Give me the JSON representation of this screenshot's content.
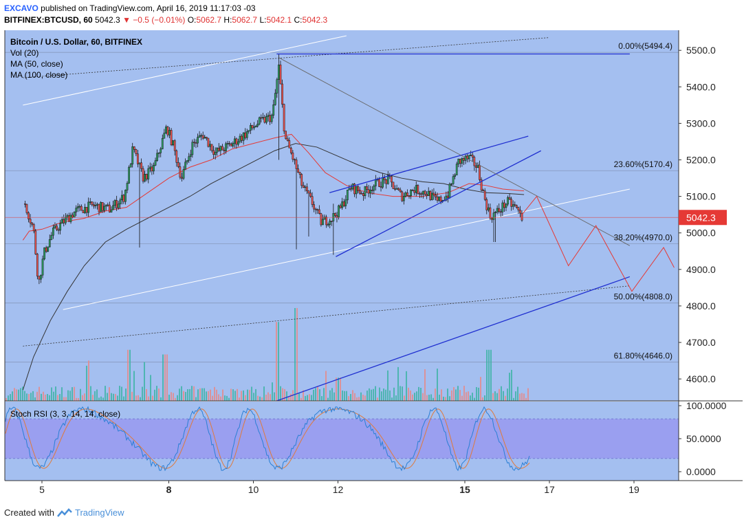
{
  "header": {
    "author": "EXCAVO",
    "published_text": "published on TradingView.com, April 16, 2019 11:17:03 -03",
    "symbol": "BITFINEX:BTCUSD, 60",
    "price": "5042.3",
    "change": "▼ −0.5 (−0.01%)",
    "ohlc": {
      "o_label": "O:",
      "o": "5062.7",
      "h_label": "H:",
      "h": "5062.7",
      "l_label": "L:",
      "l": "5042.1",
      "c_label": "C:",
      "c": "5042.3"
    }
  },
  "legend": {
    "title": "Bitcoin / U.S. Dollar, 60, BITFINEX",
    "items": [
      "Vol (20)",
      "MA (50, close)",
      "MA (100, close)"
    ]
  },
  "price_axis": {
    "ticks": [
      "5500.0",
      "5400.0",
      "5300.0",
      "5200.0",
      "5100.0",
      "5000.0",
      "4900.0",
      "4800.0",
      "4700.0",
      "4600.0"
    ],
    "current_price": "5042.3"
  },
  "fib_levels": [
    {
      "label": "0.00%(5494.4)",
      "value": 5494.4
    },
    {
      "label": "23.60%(5170.4)",
      "value": 5170.4
    },
    {
      "label": "38.20%(4970.0)",
      "value": 4970.0
    },
    {
      "label": "50.00%(4808.0)",
      "value": 4808.0
    },
    {
      "label": "61.80%(4646.0)",
      "value": 4646.0
    }
  ],
  "rsi": {
    "title": "Stoch RSI (3, 3, 14, 14, close)",
    "ticks": [
      "100.0000",
      "50.0000",
      "0.0000"
    ]
  },
  "time_axis": {
    "labels": [
      {
        "text": "5",
        "bold": false
      },
      {
        "text": "8",
        "bold": true
      },
      {
        "text": "10",
        "bold": false
      },
      {
        "text": "12",
        "bold": false
      },
      {
        "text": "15",
        "bold": true
      },
      {
        "text": "17",
        "bold": false
      },
      {
        "text": "19",
        "bold": false
      }
    ]
  },
  "footer": {
    "created_with": "Created with",
    "brand": "TradingView"
  },
  "colors": {
    "chart_bg": "#a4bff0",
    "rsi_band": "#9a9ff0",
    "up_candle": "#2e9e63",
    "down_candle": "#ef5350",
    "ma50": "#e53935",
    "ma100": "#333333",
    "trendline": "#1f2fd0",
    "price_tag": "#e53935"
  },
  "chart_data": {
    "type": "candlestick",
    "symbol": "BTCUSD",
    "interval": "60",
    "ylim": [
      4540,
      5555
    ],
    "x_dates": [
      "5",
      "8",
      "10",
      "12",
      "15",
      "17",
      "19"
    ],
    "close_path": [
      {
        "d": 4.6,
        "v": 5080
      },
      {
        "d": 4.8,
        "v": 5010
      },
      {
        "d": 4.92,
        "v": 4860
      },
      {
        "d": 5.05,
        "v": 4945
      },
      {
        "d": 5.25,
        "v": 5000
      },
      {
        "d": 5.5,
        "v": 5030
      },
      {
        "d": 5.8,
        "v": 5060
      },
      {
        "d": 6.2,
        "v": 5075
      },
      {
        "d": 6.6,
        "v": 5065
      },
      {
        "d": 6.95,
        "v": 5100
      },
      {
        "d": 7.15,
        "v": 5230
      },
      {
        "d": 7.4,
        "v": 5150
      },
      {
        "d": 7.65,
        "v": 5180
      },
      {
        "d": 7.95,
        "v": 5290
      },
      {
        "d": 8.1,
        "v": 5240
      },
      {
        "d": 8.3,
        "v": 5150
      },
      {
        "d": 8.55,
        "v": 5240
      },
      {
        "d": 8.8,
        "v": 5270
      },
      {
        "d": 9.1,
        "v": 5220
      },
      {
        "d": 9.45,
        "v": 5240
      },
      {
        "d": 9.8,
        "v": 5270
      },
      {
        "d": 10.1,
        "v": 5300
      },
      {
        "d": 10.45,
        "v": 5320
      },
      {
        "d": 10.6,
        "v": 5455
      },
      {
        "d": 10.75,
        "v": 5260
      },
      {
        "d": 10.95,
        "v": 5200
      },
      {
        "d": 11.15,
        "v": 5130
      },
      {
        "d": 11.4,
        "v": 5080
      },
      {
        "d": 11.6,
        "v": 5030
      },
      {
        "d": 11.85,
        "v": 5040
      },
      {
        "d": 12.05,
        "v": 5065
      },
      {
        "d": 12.3,
        "v": 5125
      },
      {
        "d": 12.6,
        "v": 5110
      },
      {
        "d": 12.9,
        "v": 5135
      },
      {
        "d": 13.2,
        "v": 5145
      },
      {
        "d": 13.5,
        "v": 5100
      },
      {
        "d": 13.8,
        "v": 5120
      },
      {
        "d": 14.1,
        "v": 5110
      },
      {
        "d": 14.35,
        "v": 5085
      },
      {
        "d": 14.6,
        "v": 5105
      },
      {
        "d": 14.85,
        "v": 5195
      },
      {
        "d": 15.1,
        "v": 5205
      },
      {
        "d": 15.3,
        "v": 5180
      },
      {
        "d": 15.45,
        "v": 5100
      },
      {
        "d": 15.6,
        "v": 5045
      },
      {
        "d": 15.8,
        "v": 5060
      },
      {
        "d": 16.0,
        "v": 5085
      },
      {
        "d": 16.2,
        "v": 5070
      },
      {
        "d": 16.35,
        "v": 5042.3
      }
    ],
    "ma50": [
      {
        "d": 4.55,
        "v": 4980
      },
      {
        "d": 4.7,
        "v": 5005
      },
      {
        "d": 5.0,
        "v": 5010
      },
      {
        "d": 5.5,
        "v": 5030
      },
      {
        "d": 6.0,
        "v": 5040
      },
      {
        "d": 6.5,
        "v": 5060
      },
      {
        "d": 7.0,
        "v": 5070
      },
      {
        "d": 7.5,
        "v": 5110
      },
      {
        "d": 8.0,
        "v": 5150
      },
      {
        "d": 8.5,
        "v": 5180
      },
      {
        "d": 9.0,
        "v": 5200
      },
      {
        "d": 9.5,
        "v": 5230
      },
      {
        "d": 10.0,
        "v": 5245
      },
      {
        "d": 10.5,
        "v": 5260
      },
      {
        "d": 10.9,
        "v": 5270
      },
      {
        "d": 11.3,
        "v": 5220
      },
      {
        "d": 11.7,
        "v": 5165
      },
      {
        "d": 12.2,
        "v": 5130
      },
      {
        "d": 12.7,
        "v": 5110
      },
      {
        "d": 13.3,
        "v": 5100
      },
      {
        "d": 14.0,
        "v": 5100
      },
      {
        "d": 14.6,
        "v": 5110
      },
      {
        "d": 15.1,
        "v": 5135
      },
      {
        "d": 15.5,
        "v": 5130
      },
      {
        "d": 15.9,
        "v": 5120
      },
      {
        "d": 16.4,
        "v": 5115
      }
    ],
    "ma100": [
      {
        "d": 4.55,
        "v": 4570
      },
      {
        "d": 4.8,
        "v": 4660
      },
      {
        "d": 5.2,
        "v": 4760
      },
      {
        "d": 5.6,
        "v": 4840
      },
      {
        "d": 6.0,
        "v": 4910
      },
      {
        "d": 6.5,
        "v": 4975
      },
      {
        "d": 7.0,
        "v": 5010
      },
      {
        "d": 7.5,
        "v": 5040
      },
      {
        "d": 8.0,
        "v": 5070
      },
      {
        "d": 8.5,
        "v": 5100
      },
      {
        "d": 9.0,
        "v": 5135
      },
      {
        "d": 9.5,
        "v": 5165
      },
      {
        "d": 10.0,
        "v": 5195
      },
      {
        "d": 10.5,
        "v": 5225
      },
      {
        "d": 11.0,
        "v": 5245
      },
      {
        "d": 11.5,
        "v": 5235
      },
      {
        "d": 12.0,
        "v": 5210
      },
      {
        "d": 12.5,
        "v": 5185
      },
      {
        "d": 13.0,
        "v": 5165
      },
      {
        "d": 13.5,
        "v": 5150
      },
      {
        "d": 14.0,
        "v": 5140
      },
      {
        "d": 14.5,
        "v": 5135
      },
      {
        "d": 15.0,
        "v": 5120
      },
      {
        "d": 15.5,
        "v": 5110
      },
      {
        "d": 16.0,
        "v": 5108
      },
      {
        "d": 16.4,
        "v": 5105
      }
    ],
    "spikes": [
      {
        "d": 7.3,
        "high": 5170,
        "low": 4960
      },
      {
        "d": 10.6,
        "high": 5490,
        "low": 5200
      },
      {
        "d": 11.0,
        "high": 5200,
        "low": 4955
      },
      {
        "d": 11.3,
        "high": 5100,
        "low": 4990
      },
      {
        "d": 11.9,
        "high": 5080,
        "low": 4940
      },
      {
        "d": 15.7,
        "high": 5060,
        "low": 4975
      }
    ],
    "volume_spikes": [
      {
        "d": 7.05,
        "rel": 0.55
      },
      {
        "d": 7.9,
        "rel": 0.5
      },
      {
        "d": 10.55,
        "rel": 0.85
      },
      {
        "d": 11.0,
        "rel": 1.0
      },
      {
        "d": 15.55,
        "rel": 0.55
      },
      {
        "d": 12.0,
        "rel": 0.25
      }
    ],
    "rising_wedge": {
      "upper": [
        {
          "d": 11.8,
          "v": 5110
        },
        {
          "d": 16.5,
          "v": 5265
        }
      ],
      "lower": [
        {
          "d": 11.95,
          "v": 4935
        },
        {
          "d": 16.8,
          "v": 5225
        }
      ]
    },
    "top_resistance": [
      {
        "d": 10.55,
        "v": 5490
      },
      {
        "d": 18.9,
        "v": 5490
      }
    ],
    "descending_line": [
      {
        "d": 10.6,
        "v": 5480
      },
      {
        "d": 18.9,
        "v": 4965
      }
    ],
    "long_support": [
      {
        "d": 10.55,
        "v": 4540
      },
      {
        "d": 18.9,
        "v": 4880
      }
    ],
    "white_channel": {
      "upper": [
        {
          "d": 4.55,
          "v": 5350
        },
        {
          "d": 12.2,
          "v": 5540
        }
      ],
      "lower": [
        {
          "d": 5.5,
          "v": 4790
        },
        {
          "d": 18.9,
          "v": 5120
        }
      ]
    },
    "dotted_channel": {
      "upper": [
        {
          "d": 4.55,
          "v": 5425
        },
        {
          "d": 17.0,
          "v": 5535
        }
      ],
      "lower": [
        {
          "d": 4.55,
          "v": 4690
        },
        {
          "d": 18.9,
          "v": 4855
        }
      ]
    },
    "projection": [
      {
        "d": 16.35,
        "v": 5050
      },
      {
        "d": 16.7,
        "v": 5100
      },
      {
        "d": 17.45,
        "v": 4910
      },
      {
        "d": 18.1,
        "v": 5020
      },
      {
        "d": 18.95,
        "v": 4840
      },
      {
        "d": 19.7,
        "v": 4960
      },
      {
        "d": 19.95,
        "v": 4905
      }
    ],
    "stoch_rsi": {
      "ylim": [
        0,
        100
      ],
      "band": [
        20,
        80
      ]
    },
    "grid": false
  }
}
